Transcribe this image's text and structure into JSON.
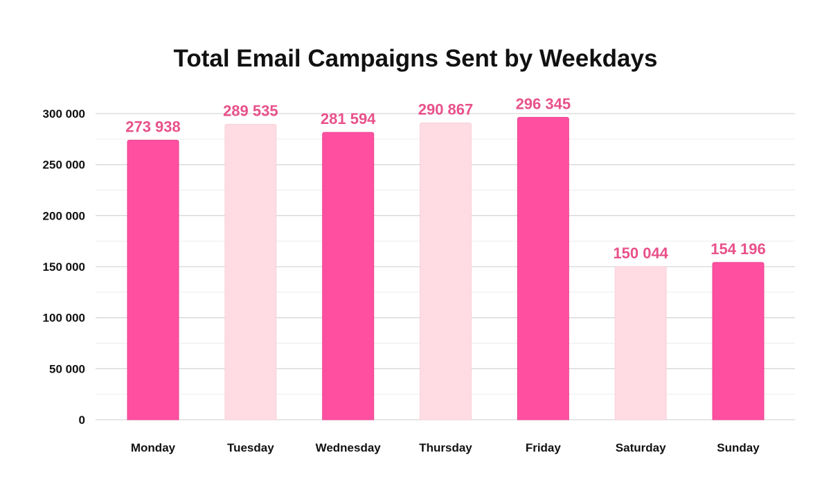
{
  "chart_data": {
    "type": "bar",
    "title": "Total Email Campaigns Sent by Weekdays",
    "xlabel": "",
    "ylabel": "",
    "categories": [
      "Monday",
      "Tuesday",
      "Wednesday",
      "Thursday",
      "Friday",
      "Saturday",
      "Sunday"
    ],
    "values": [
      273938,
      289535,
      281594,
      290867,
      296345,
      150044,
      154196
    ],
    "value_labels": [
      "273 938",
      "289 535",
      "281 594",
      "290 867",
      "296 345",
      "150 044",
      "154 196"
    ],
    "ylim": [
      0,
      300000
    ],
    "yticks": [
      0,
      50000,
      100000,
      150000,
      200000,
      250000,
      300000
    ],
    "ytick_labels": [
      "0",
      "50 000",
      "100 000",
      "150 000",
      "200 000",
      "250 000",
      "300 000"
    ],
    "grid": true,
    "bar_colors": [
      "#FF4FA0",
      "#FFDCE4",
      "#FF4FA0",
      "#FFDCE4",
      "#FF4FA0",
      "#FFDCE4",
      "#FF4FA0"
    ],
    "label_color": "#E8518A"
  }
}
